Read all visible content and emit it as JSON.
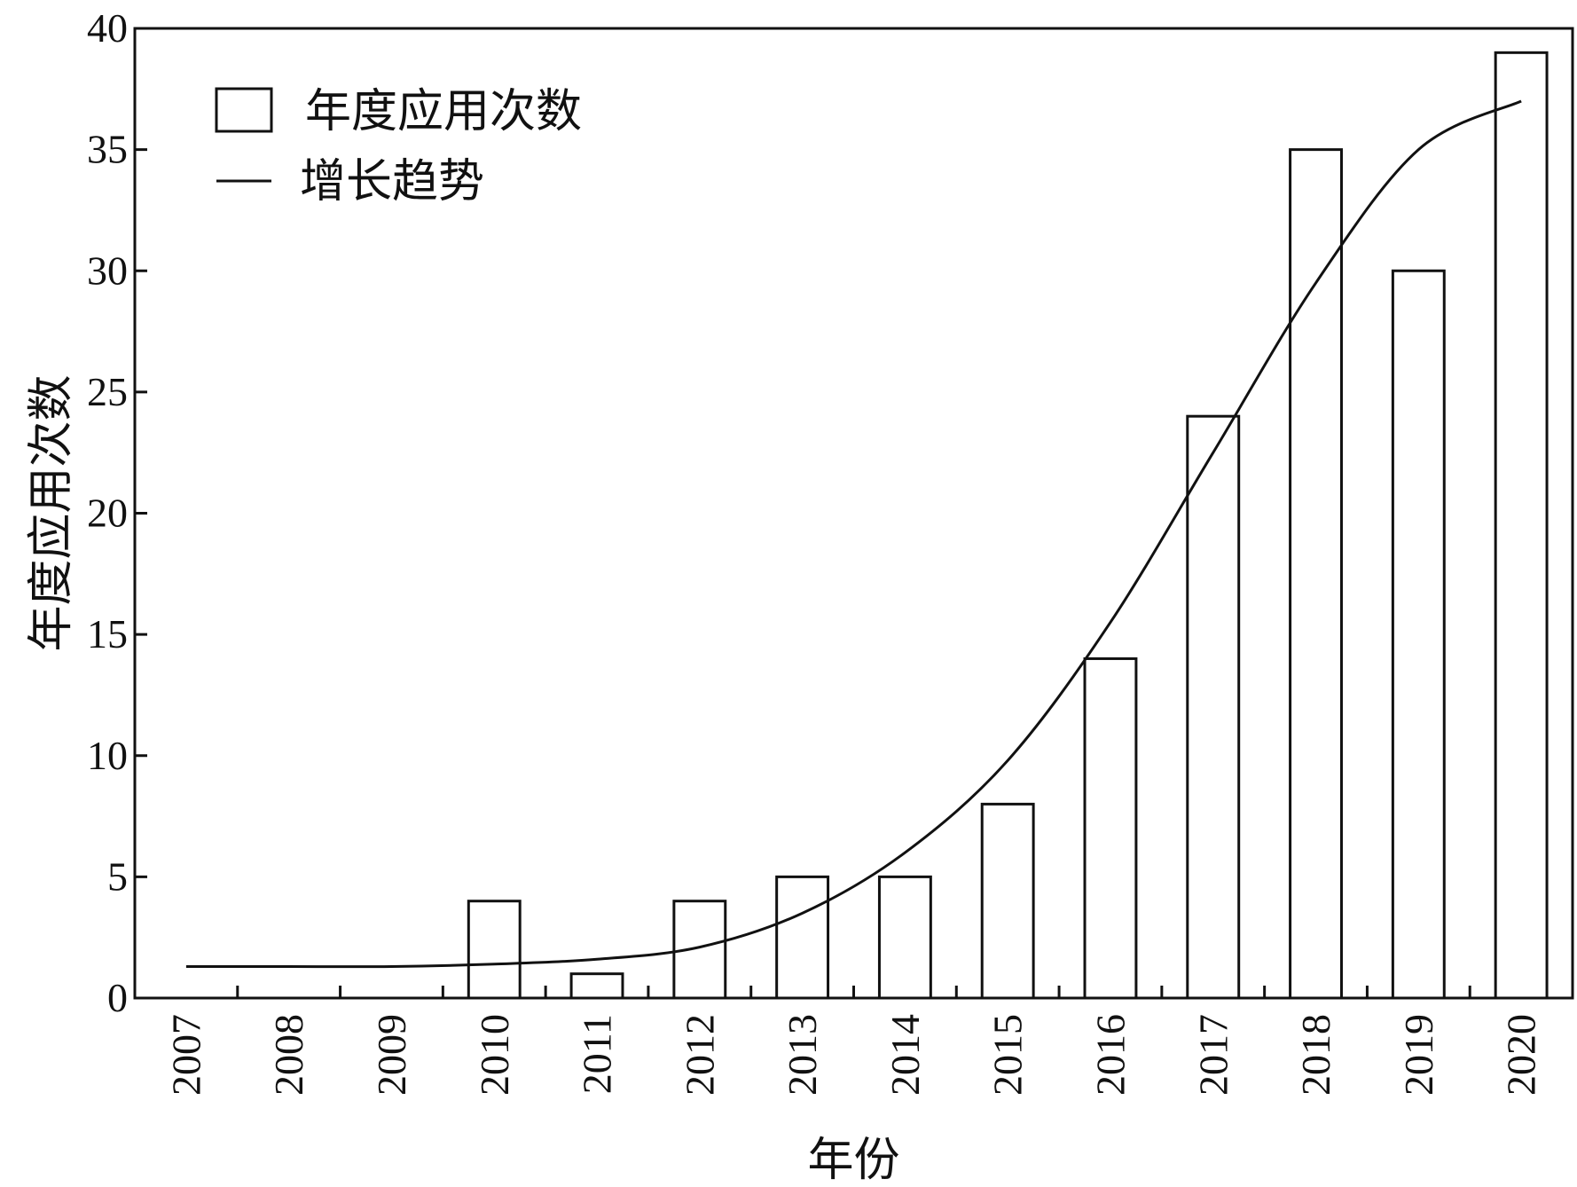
{
  "chart_data": {
    "type": "bar",
    "categories": [
      "2007",
      "2008",
      "2009",
      "2010",
      "2011",
      "2012",
      "2013",
      "2014",
      "2015",
      "2016",
      "2017",
      "2018",
      "2019",
      "2020"
    ],
    "series": [
      {
        "name": "年度应用次数",
        "kind": "bar",
        "values": [
          0,
          0,
          0,
          4,
          1,
          4,
          5,
          5,
          8,
          14,
          24,
          35,
          30,
          39
        ]
      },
      {
        "name": "增长趋势",
        "kind": "line",
        "smooth": true,
        "values": [
          1.3,
          1.3,
          1.3,
          1.4,
          1.6,
          2.1,
          3.5,
          6.0,
          9.8,
          15.5,
          22.5,
          29.5,
          35.0,
          37.0
        ]
      }
    ],
    "xlabel": "年份",
    "ylabel": "年度应用次数",
    "ylim": [
      0,
      40
    ],
    "yticks": [
      0,
      5,
      10,
      15,
      20,
      25,
      30,
      35,
      40
    ],
    "grid": false,
    "legend": "top-left"
  }
}
